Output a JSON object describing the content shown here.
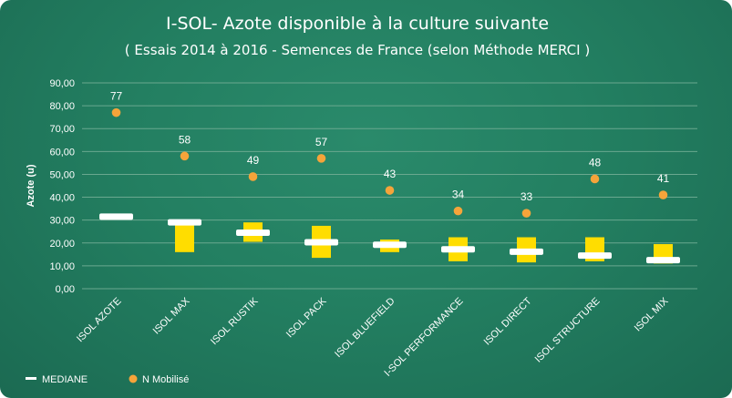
{
  "chart_data": {
    "type": "box",
    "title": "I-SOL- Azote disponible à la culture suivante",
    "subtitle": "( Essais 2014 à 2016 - Semences de France (selon Méthode MERCI )",
    "ylabel": "Azote (u)",
    "ylim": [
      0,
      90
    ],
    "ytick_step": 10,
    "y_ticks": [
      "0,00",
      "10,00",
      "20,00",
      "30,00",
      "40,00",
      "50,00",
      "60,00",
      "70,00",
      "80,00",
      "90,00"
    ],
    "grid": true,
    "legend_position": "bottom-left",
    "categories": [
      "ISOL AZOTE",
      "ISOL MAX",
      "ISOL RUSTIK",
      "ISOL PACK",
      "ISOL BLUEFIELD",
      "I-SOL PERFORMANCE",
      "ISOL DIRECT",
      "ISOL STRUCTURE",
      "ISOL MIX"
    ],
    "series": [
      {
        "name": "MEDIANE",
        "type": "median",
        "values": [
          31.5,
          29,
          24.5,
          20.3,
          19.2,
          17.2,
          16.2,
          14.5,
          12.5
        ]
      },
      {
        "name": "range",
        "type": "range",
        "low": [
          31.5,
          16,
          20.5,
          13.5,
          16,
          12,
          11.5,
          12,
          11
        ],
        "high": [
          31.5,
          30,
          29,
          27.5,
          21.5,
          22.5,
          22.5,
          22.5,
          19.5
        ]
      },
      {
        "name": "N Mobilisé",
        "type": "scatter",
        "values": [
          77,
          58,
          49,
          57,
          43,
          34,
          33,
          48,
          41
        ],
        "labels": [
          "77",
          "58",
          "49",
          "57",
          "43",
          "34",
          "33",
          "48",
          "41"
        ]
      }
    ],
    "colors": {
      "range": "#ffdd00",
      "median": "#ffffff",
      "n_mobilise": "#f5a43a",
      "grid": "#6aa88f",
      "background": "#237f61"
    }
  }
}
